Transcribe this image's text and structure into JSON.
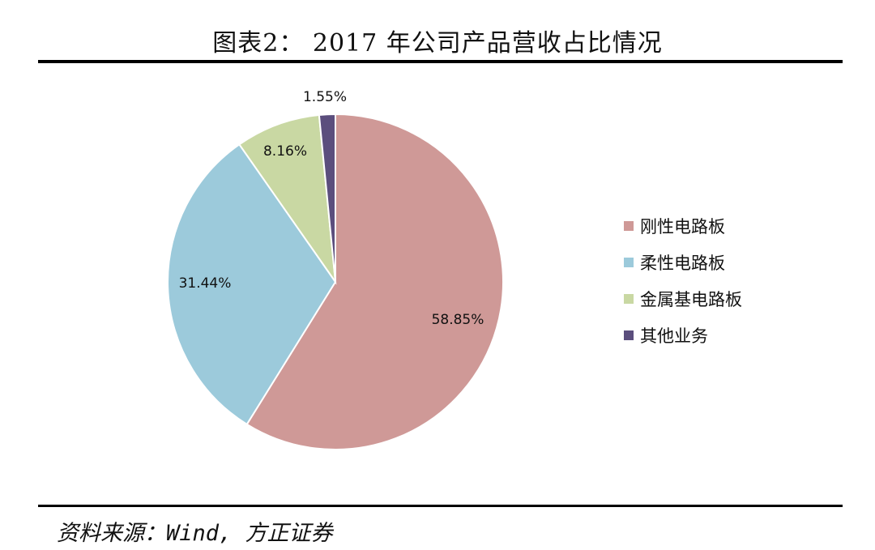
{
  "header": {
    "title": "图表2： 2017 年公司产品营收占比情况"
  },
  "footer": {
    "source": "资料来源：Wind, 方正证券"
  },
  "chart_data": {
    "type": "pie",
    "legend_position": "right",
    "categories": [
      "刚性电路板",
      "柔性电路板",
      "金属基电路板",
      "其他业务"
    ],
    "values": [
      58.85,
      31.44,
      8.16,
      1.55
    ],
    "labels": [
      "58.85%",
      "31.44%",
      "8.16%",
      "1.55%"
    ],
    "colors": [
      "#cf9997",
      "#9ccadb",
      "#c9d8a3",
      "#5b4e7d"
    ],
    "start_angle_deg": 0,
    "direction": "clockwise"
  }
}
